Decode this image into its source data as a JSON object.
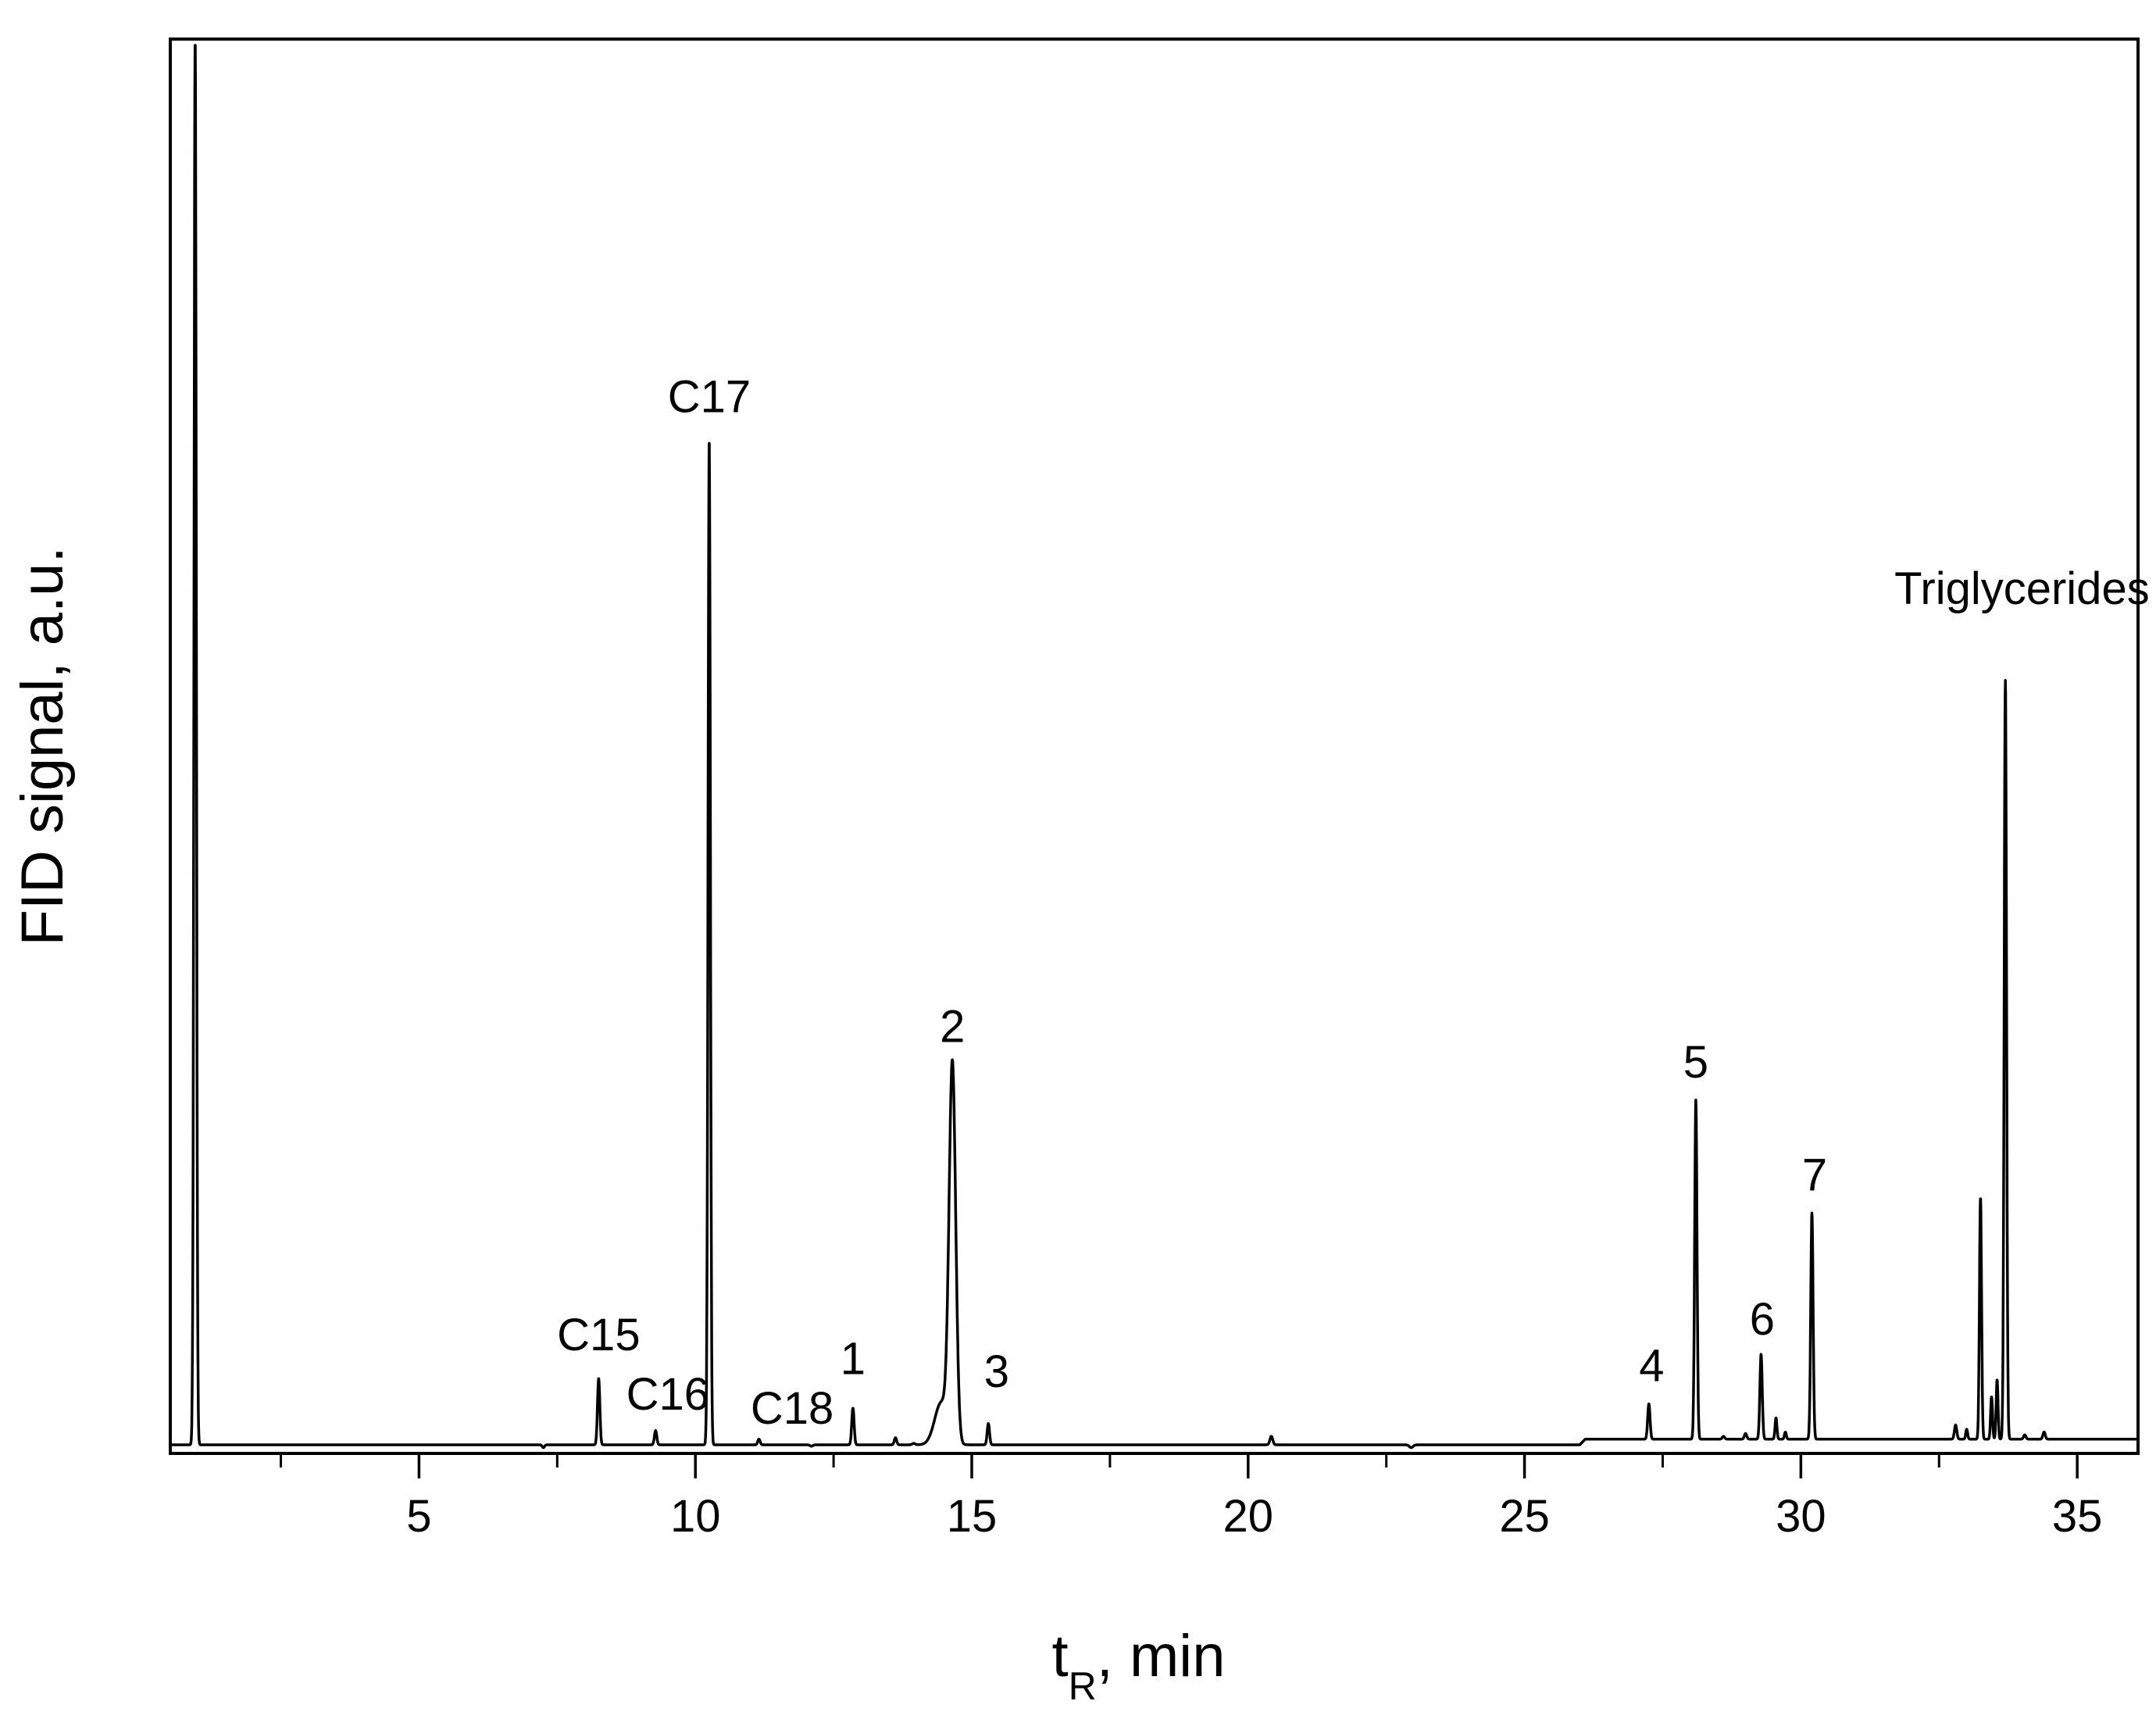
{
  "chart_data": {
    "type": "line",
    "title": "",
    "xlabel": "t",
    "xlabel_subscript": "R",
    "xlabel_unit": ", min",
    "ylabel": "FID signal, a.u.",
    "xlim": [
      0.5,
      36.1
    ],
    "ylim": [
      0,
      100
    ],
    "x_ticks_major": [
      5,
      10,
      15,
      20,
      25,
      30,
      35
    ],
    "x_ticks_minor": [
      2.5,
      7.5,
      12.5,
      17.5,
      22.5,
      27.5,
      32.5
    ],
    "x_tick_labels": [
      "5",
      "10",
      "15",
      "20",
      "25",
      "30",
      "35"
    ],
    "y_tick_labels": [],
    "grid": false,
    "legend": "none",
    "line_color": "#000000",
    "baseline": [
      [
        0.5,
        0.5
      ],
      [
        7,
        0.5
      ],
      [
        26,
        0.5
      ],
      [
        26.1,
        0.9
      ],
      [
        36.1,
        0.9
      ]
    ],
    "peaks": [
      {
        "x": 0.95,
        "y": 100,
        "width": 0.05,
        "clipped": true
      },
      {
        "x": 7.25,
        "y": 0.3,
        "width": 0.05
      },
      {
        "x": 8.25,
        "y": 5.2,
        "width": 0.05
      },
      {
        "x": 9.28,
        "y": 1.5,
        "width": 0.05
      },
      {
        "x": 10.25,
        "y": 71.7,
        "width": 0.05
      },
      {
        "x": 11.15,
        "y": 0.9,
        "width": 0.05
      },
      {
        "x": 12.1,
        "y": 0.4,
        "width": 0.06
      },
      {
        "x": 12.85,
        "y": 3.1,
        "width": 0.05
      },
      {
        "x": 13.62,
        "y": 1.0,
        "width": 0.05
      },
      {
        "x": 13.95,
        "y": 0.6,
        "width": 0.06
      },
      {
        "x": 14.65,
        "y": 27.0,
        "width": 0.14
      },
      {
        "x": 15.3,
        "y": 2.0,
        "width": 0.05
      },
      {
        "x": 20.42,
        "y": 1.1,
        "width": 0.06
      },
      {
        "x": 22.95,
        "y": 0.3,
        "width": 0.08
      },
      {
        "x": 27.25,
        "y": 3.0,
        "width": 0.05
      },
      {
        "x": 28.1,
        "y": 24.5,
        "width": 0.05
      },
      {
        "x": 28.6,
        "y": 0.7,
        "width": 0.05
      },
      {
        "x": 29.0,
        "y": 0.9,
        "width": 0.05
      },
      {
        "x": 29.28,
        "y": 6.5,
        "width": 0.05
      },
      {
        "x": 29.55,
        "y": 2.0,
        "width": 0.04
      },
      {
        "x": 29.72,
        "y": 1.0,
        "width": 0.04
      },
      {
        "x": 30.2,
        "y": 16.5,
        "width": 0.05
      },
      {
        "x": 32.8,
        "y": 1.5,
        "width": 0.05
      },
      {
        "x": 33.0,
        "y": 1.2,
        "width": 0.04
      },
      {
        "x": 33.25,
        "y": 17.6,
        "width": 0.045
      },
      {
        "x": 33.45,
        "y": 3.5,
        "width": 0.04
      },
      {
        "x": 33.55,
        "y": 4.7,
        "width": 0.04
      },
      {
        "x": 33.7,
        "y": 54.2,
        "width": 0.05
      },
      {
        "x": 34.05,
        "y": 0.8,
        "width": 0.05
      },
      {
        "x": 34.4,
        "y": 1.0,
        "width": 0.05
      }
    ],
    "annotations": [
      {
        "text": "C15",
        "x": 8.25,
        "y": 7.2
      },
      {
        "text": "C16",
        "x": 9.5,
        "y": 3.0
      },
      {
        "text": "C17",
        "x": 10.25,
        "y": 73.6
      },
      {
        "text": "C18",
        "x": 11.75,
        "y": 2.0
      },
      {
        "text": "1",
        "x": 12.85,
        "y": 5.5
      },
      {
        "text": "2",
        "x": 14.65,
        "y": 29.0
      },
      {
        "text": "3",
        "x": 15.45,
        "y": 4.6
      },
      {
        "text": "4",
        "x": 27.3,
        "y": 5.0
      },
      {
        "text": "5",
        "x": 28.1,
        "y": 26.5
      },
      {
        "text": "6",
        "x": 29.3,
        "y": 8.3
      },
      {
        "text": "7",
        "x": 30.25,
        "y": 18.5
      },
      {
        "text": "Triglycerides",
        "x": 34.0,
        "y": 60.0
      }
    ]
  }
}
